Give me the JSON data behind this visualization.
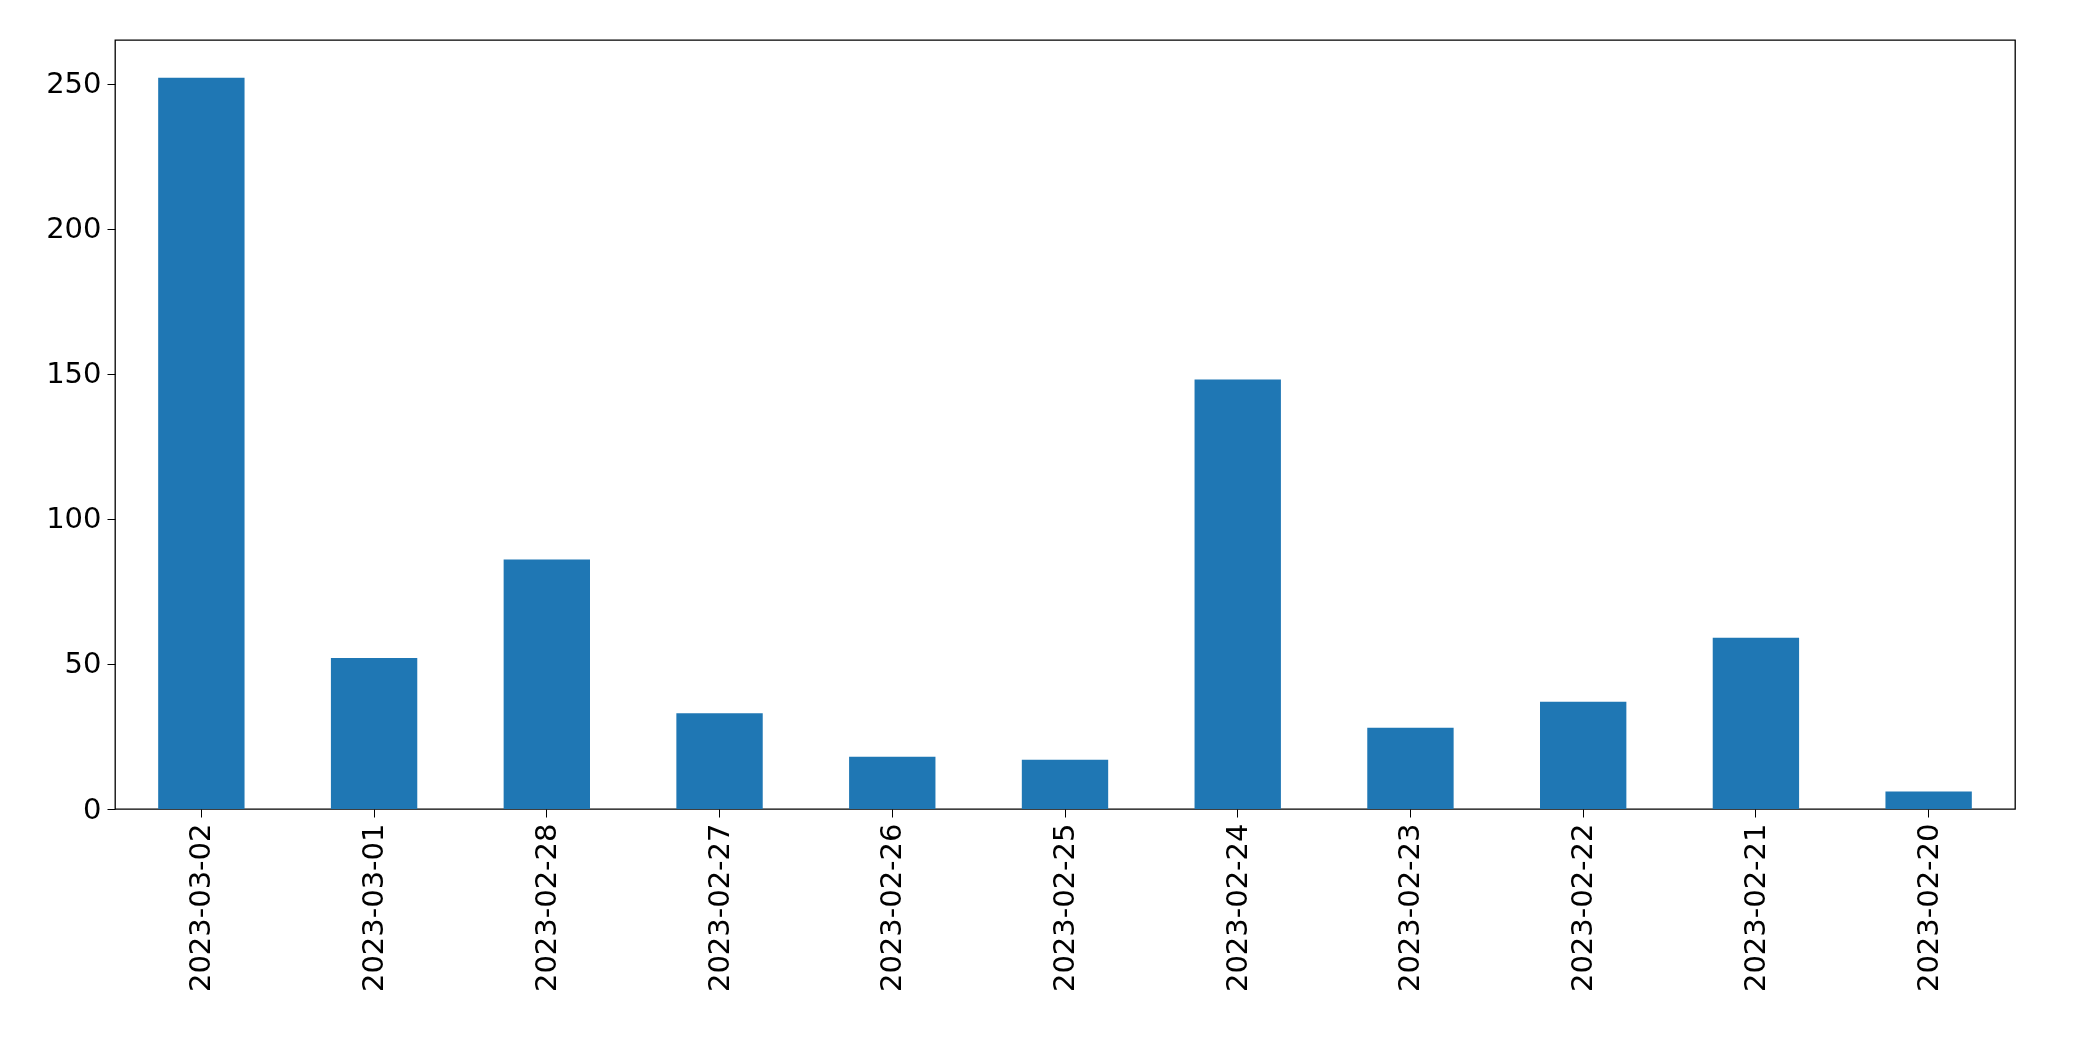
{
  "chart_data": {
    "type": "bar",
    "categories": [
      "2023-03-02",
      "2023-03-01",
      "2023-02-28",
      "2023-02-27",
      "2023-02-26",
      "2023-02-25",
      "2023-02-24",
      "2023-02-23",
      "2023-02-22",
      "2023-02-21",
      "2023-02-20"
    ],
    "values": [
      252,
      52,
      86,
      33,
      18,
      17,
      148,
      28,
      37,
      59,
      6
    ],
    "color": "#1f77b4",
    "ylim": [
      0,
      265
    ],
    "yticks": [
      0,
      50,
      100,
      150,
      200,
      250
    ],
    "grid": false
  }
}
